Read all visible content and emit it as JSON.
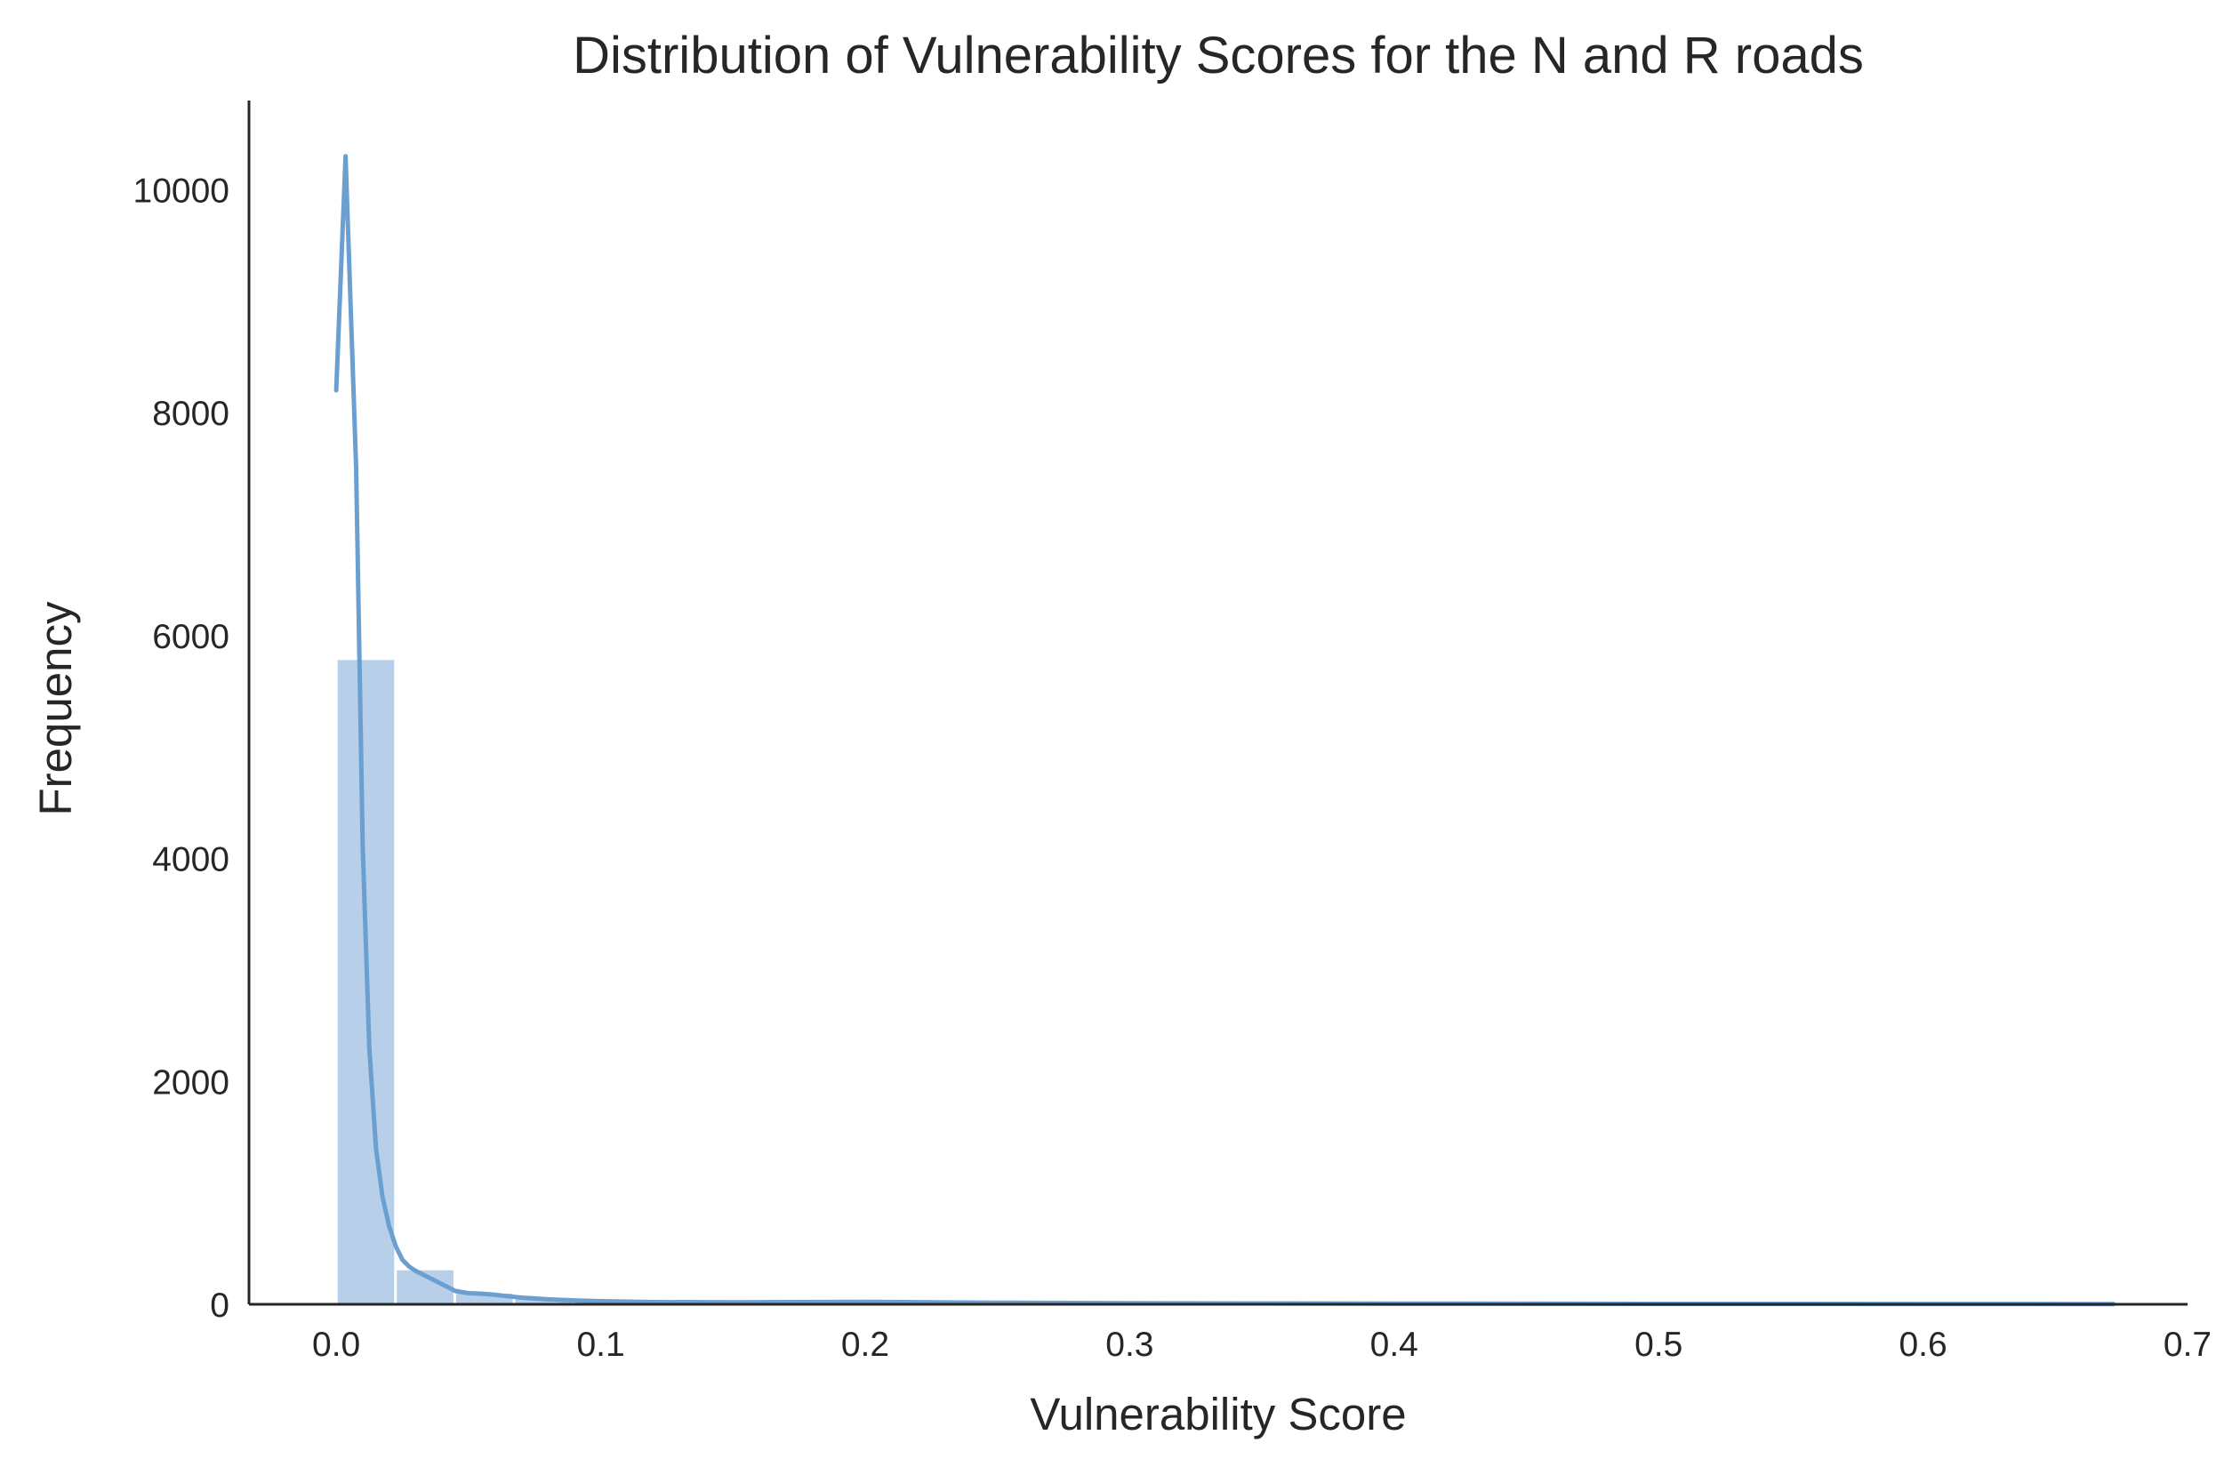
{
  "chart_data": {
    "type": "bar",
    "title": "Distribution of Vulnerability Scores for the N and R roads",
    "xlabel": "Vulnerability Score",
    "ylabel": "Frequency",
    "xlim": [
      -0.033,
      0.7
    ],
    "ylim": [
      0,
      10800
    ],
    "xticks": [
      {
        "value": 0.0,
        "label": "0.0"
      },
      {
        "value": 0.1,
        "label": "0.1"
      },
      {
        "value": 0.2,
        "label": "0.2"
      },
      {
        "value": 0.3,
        "label": "0.3"
      },
      {
        "value": 0.4,
        "label": "0.4"
      },
      {
        "value": 0.5,
        "label": "0.5"
      },
      {
        "value": 0.6,
        "label": "0.6"
      },
      {
        "value": 0.7,
        "label": "0.7"
      }
    ],
    "yticks": [
      {
        "value": 0,
        "label": "0"
      },
      {
        "value": 2000,
        "label": "2000"
      },
      {
        "value": 4000,
        "label": "4000"
      },
      {
        "value": 6000,
        "label": "6000"
      },
      {
        "value": 8000,
        "label": "8000"
      },
      {
        "value": 10000,
        "label": "10000"
      }
    ],
    "bins": [
      {
        "x0": 0.0,
        "x1": 0.0224,
        "count": 5780
      },
      {
        "x0": 0.0224,
        "x1": 0.0448,
        "count": 305
      },
      {
        "x0": 0.0448,
        "x1": 0.0672,
        "count": 95
      },
      {
        "x0": 0.0672,
        "x1": 0.0896,
        "count": 45
      },
      {
        "x0": 0.0896,
        "x1": 0.112,
        "count": 25
      },
      {
        "x0": 0.112,
        "x1": 0.1344,
        "count": 18
      },
      {
        "x0": 0.1344,
        "x1": 0.1568,
        "count": 12
      },
      {
        "x0": 0.1568,
        "x1": 0.1792,
        "count": 9
      },
      {
        "x0": 0.1792,
        "x1": 0.2016,
        "count": 7
      },
      {
        "x0": 0.2016,
        "x1": 0.224,
        "count": 8
      },
      {
        "x0": 0.224,
        "x1": 0.2464,
        "count": 6
      },
      {
        "x0": 0.2464,
        "x1": 0.2688,
        "count": 5
      },
      {
        "x0": 0.2688,
        "x1": 0.2912,
        "count": 4
      },
      {
        "x0": 0.2912,
        "x1": 0.3136,
        "count": 4
      },
      {
        "x0": 0.3136,
        "x1": 0.336,
        "count": 3
      },
      {
        "x0": 0.336,
        "x1": 0.3584,
        "count": 4
      },
      {
        "x0": 0.3584,
        "x1": 0.3808,
        "count": 3
      },
      {
        "x0": 0.3808,
        "x1": 0.4032,
        "count": 3
      },
      {
        "x0": 0.4032,
        "x1": 0.4256,
        "count": 2
      },
      {
        "x0": 0.4256,
        "x1": 0.448,
        "count": 2
      },
      {
        "x0": 0.448,
        "x1": 0.4704,
        "count": 2
      },
      {
        "x0": 0.4704,
        "x1": 0.4928,
        "count": 2
      },
      {
        "x0": 0.4928,
        "x1": 0.5152,
        "count": 2
      },
      {
        "x0": 0.5152,
        "x1": 0.5376,
        "count": 1
      },
      {
        "x0": 0.5376,
        "x1": 0.56,
        "count": 1
      },
      {
        "x0": 0.56,
        "x1": 0.5824,
        "count": 1
      },
      {
        "x0": 0.5824,
        "x1": 0.6048,
        "count": 1
      },
      {
        "x0": 0.6048,
        "x1": 0.6272,
        "count": 1
      },
      {
        "x0": 0.6272,
        "x1": 0.6496,
        "count": 1
      },
      {
        "x0": 0.6496,
        "x1": 0.672,
        "count": 1
      }
    ],
    "kde": {
      "x": [
        0.0,
        0.0035,
        0.0075,
        0.01,
        0.0125,
        0.015,
        0.0175,
        0.02,
        0.0225,
        0.025,
        0.0275,
        0.03,
        0.035,
        0.04,
        0.045,
        0.05,
        0.055,
        0.06,
        0.07,
        0.08,
        0.09,
        0.1,
        0.12,
        0.15,
        0.2,
        0.25,
        0.3,
        0.35,
        0.4,
        0.5,
        0.6,
        0.672
      ],
      "y": [
        8200,
        10300,
        7500,
        4100,
        2300,
        1400,
        960,
        700,
        520,
        400,
        340,
        300,
        240,
        180,
        120,
        100,
        95,
        85,
        60,
        45,
        35,
        28,
        20,
        18,
        22,
        14,
        10,
        8,
        6,
        4,
        3,
        2
      ]
    },
    "grid": false,
    "bar_color": "#aac7e4",
    "line_color": "#6a9fcf"
  }
}
